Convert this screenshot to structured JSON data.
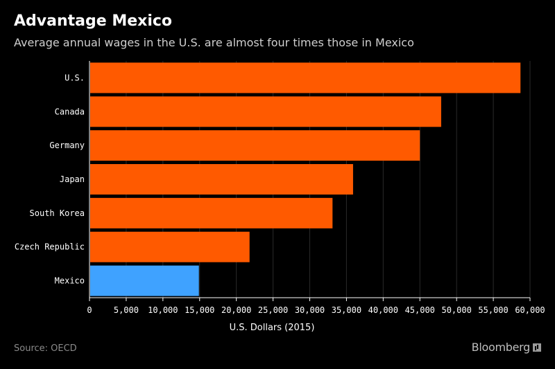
{
  "header": {
    "title": "Advantage Mexico",
    "subtitle": "Average annual wages in the U.S. are almost four times those in Mexico"
  },
  "footer": {
    "source": "Source: OECD",
    "brand": "Bloomberg"
  },
  "colors": {
    "background": "#000000",
    "bar_default": "#ff5a00",
    "bar_highlight": "#3fa2ff",
    "grid": "#2a2a2a",
    "axis": "#ffffff"
  },
  "chart_data": {
    "type": "bar",
    "orientation": "horizontal",
    "title": "Advantage Mexico",
    "subtitle": "Average annual wages in the U.S. are almost four times those in Mexico",
    "xlabel": "U.S. Dollars (2015)",
    "ylabel": "",
    "xlim": [
      0,
      60000
    ],
    "xticks": [
      0,
      5000,
      10000,
      15000,
      20000,
      25000,
      30000,
      35000,
      40000,
      45000,
      50000,
      55000,
      60000
    ],
    "xtick_labels": [
      "0",
      "5,000",
      "10,000",
      "15,000",
      "20,000",
      "25,000",
      "30,000",
      "35,000",
      "40,000",
      "45,000",
      "50,000",
      "55,000",
      "60,000"
    ],
    "categories": [
      "U.S.",
      "Canada",
      "Germany",
      "Japan",
      "South Korea",
      "Czech Republic",
      "Mexico"
    ],
    "values": [
      58700,
      47900,
      45000,
      35900,
      33100,
      21800,
      14900
    ],
    "highlight": [
      "Mexico"
    ],
    "grid": "vertical",
    "legend": "none",
    "source": "Source: OECD"
  }
}
